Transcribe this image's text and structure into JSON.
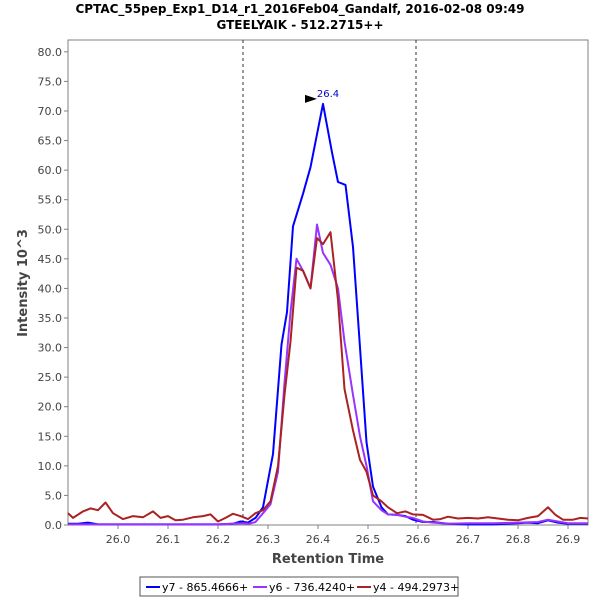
{
  "chart_data": {
    "type": "line",
    "title": "CPTAC_55pep_Exp1_D14_r1_2016Feb04_Gandalf, 2016-02-08 09:49",
    "subtitle": "GTEELYAIK - 512.2715++",
    "xlabel": "Retention Time",
    "ylabel": "Intensity 10^3",
    "xlim": [
      25.9,
      26.94
    ],
    "ylim": [
      0,
      82
    ],
    "x_ticks": [
      "26.0",
      "26.1",
      "26.2",
      "26.3",
      "26.4",
      "26.5",
      "26.6",
      "26.7",
      "26.8",
      "26.9"
    ],
    "y_ticks": [
      "0.0",
      "5.0",
      "10.0",
      "15.0",
      "20.0",
      "25.0",
      "30.0",
      "35.0",
      "40.0",
      "45.0",
      "50.0",
      "55.0",
      "60.0",
      "65.0",
      "70.0",
      "75.0",
      "80.0"
    ],
    "vlines": [
      26.25,
      26.596
    ],
    "peak_annotation": {
      "label": "26.4",
      "x": 26.41,
      "y": 71.2
    },
    "series": [
      {
        "name": "y7 - 865.4666+",
        "color": "#0000ff",
        "points": [
          [
            25.9,
            0.2
          ],
          [
            25.92,
            0.2
          ],
          [
            25.94,
            0.4
          ],
          [
            25.96,
            0.1
          ],
          [
            26.0,
            0.1
          ],
          [
            26.1,
            0.1
          ],
          [
            26.2,
            0.1
          ],
          [
            26.23,
            0.2
          ],
          [
            26.245,
            0.6
          ],
          [
            26.26,
            0.4
          ],
          [
            26.275,
            1.2
          ],
          [
            26.29,
            3.0
          ],
          [
            26.31,
            12.0
          ],
          [
            26.327,
            30.5
          ],
          [
            26.338,
            36.0
          ],
          [
            26.35,
            50.5
          ],
          [
            26.37,
            56.0
          ],
          [
            26.385,
            60.5
          ],
          [
            26.41,
            71.2
          ],
          [
            26.428,
            63.0
          ],
          [
            26.44,
            58.0
          ],
          [
            26.455,
            57.5
          ],
          [
            26.47,
            47.0
          ],
          [
            26.484,
            30.0
          ],
          [
            26.497,
            14.0
          ],
          [
            26.51,
            6.5
          ],
          [
            26.527,
            3.0
          ],
          [
            26.54,
            1.8
          ],
          [
            26.558,
            1.7
          ],
          [
            26.575,
            1.5
          ],
          [
            26.59,
            0.9
          ],
          [
            26.61,
            0.5
          ],
          [
            26.63,
            0.5
          ],
          [
            26.66,
            0.2
          ],
          [
            26.7,
            0.1
          ],
          [
            26.75,
            0.1
          ],
          [
            26.8,
            0.3
          ],
          [
            26.82,
            0.4
          ],
          [
            26.84,
            0.3
          ],
          [
            26.86,
            0.8
          ],
          [
            26.88,
            0.4
          ],
          [
            26.9,
            0.2
          ],
          [
            26.94,
            0.2
          ]
        ]
      },
      {
        "name": "y6 - 736.4240+",
        "color": "#9933ff",
        "points": [
          [
            25.9,
            0.1
          ],
          [
            26.0,
            0.1
          ],
          [
            26.1,
            0.1
          ],
          [
            26.2,
            0.1
          ],
          [
            26.25,
            0.3
          ],
          [
            26.262,
            0.2
          ],
          [
            26.275,
            0.5
          ],
          [
            26.29,
            2.0
          ],
          [
            26.305,
            3.5
          ],
          [
            26.32,
            9.0
          ],
          [
            26.333,
            24.0
          ],
          [
            26.345,
            36.0
          ],
          [
            26.357,
            45.0
          ],
          [
            26.37,
            43.0
          ],
          [
            26.385,
            40.0
          ],
          [
            26.398,
            50.8
          ],
          [
            26.41,
            46.0
          ],
          [
            26.425,
            44.0
          ],
          [
            26.44,
            40.0
          ],
          [
            26.453,
            31.0
          ],
          [
            26.47,
            22.0
          ],
          [
            26.484,
            15.0
          ],
          [
            26.497,
            10.0
          ],
          [
            26.51,
            4.0
          ],
          [
            26.527,
            2.5
          ],
          [
            26.54,
            1.8
          ],
          [
            26.558,
            1.7
          ],
          [
            26.575,
            1.4
          ],
          [
            26.59,
            1.2
          ],
          [
            26.61,
            0.6
          ],
          [
            26.63,
            0.4
          ],
          [
            26.66,
            0.2
          ],
          [
            26.7,
            0.3
          ],
          [
            26.75,
            0.3
          ],
          [
            26.8,
            0.4
          ],
          [
            26.84,
            0.5
          ],
          [
            26.86,
            0.9
          ],
          [
            26.88,
            0.6
          ],
          [
            26.9,
            0.3
          ],
          [
            26.94,
            0.3
          ]
        ]
      },
      {
        "name": "y4 - 494.2973+",
        "color": "#aa2222",
        "points": [
          [
            25.9,
            2.0
          ],
          [
            25.91,
            1.2
          ],
          [
            25.93,
            2.3
          ],
          [
            25.945,
            2.8
          ],
          [
            25.96,
            2.5
          ],
          [
            25.975,
            3.8
          ],
          [
            25.99,
            2.0
          ],
          [
            26.01,
            1.0
          ],
          [
            26.03,
            1.5
          ],
          [
            26.05,
            1.3
          ],
          [
            26.07,
            2.3
          ],
          [
            26.085,
            1.2
          ],
          [
            26.1,
            1.5
          ],
          [
            26.115,
            0.8
          ],
          [
            26.13,
            0.9
          ],
          [
            26.15,
            1.3
          ],
          [
            26.17,
            1.5
          ],
          [
            26.185,
            1.8
          ],
          [
            26.2,
            0.6
          ],
          [
            26.215,
            1.2
          ],
          [
            26.23,
            1.9
          ],
          [
            26.245,
            1.5
          ],
          [
            26.26,
            1.0
          ],
          [
            26.275,
            2.0
          ],
          [
            26.29,
            2.5
          ],
          [
            26.305,
            4.0
          ],
          [
            26.32,
            10.0
          ],
          [
            26.333,
            22.0
          ],
          [
            26.345,
            31.0
          ],
          [
            26.357,
            43.5
          ],
          [
            26.37,
            43.0
          ],
          [
            26.385,
            40.0
          ],
          [
            26.398,
            48.5
          ],
          [
            26.41,
            47.5
          ],
          [
            26.425,
            49.5
          ],
          [
            26.44,
            38.0
          ],
          [
            26.453,
            23.0
          ],
          [
            26.47,
            16.0
          ],
          [
            26.484,
            11.0
          ],
          [
            26.497,
            9.0
          ],
          [
            26.51,
            5.0
          ],
          [
            26.527,
            4.0
          ],
          [
            26.54,
            3.0
          ],
          [
            26.558,
            2.0
          ],
          [
            26.575,
            2.3
          ],
          [
            26.59,
            1.8
          ],
          [
            26.61,
            1.7
          ],
          [
            26.63,
            0.9
          ],
          [
            26.645,
            1.0
          ],
          [
            26.66,
            1.4
          ],
          [
            26.68,
            1.1
          ],
          [
            26.7,
            1.2
          ],
          [
            26.72,
            1.1
          ],
          [
            26.74,
            1.3
          ],
          [
            26.76,
            1.1
          ],
          [
            26.78,
            0.9
          ],
          [
            26.8,
            0.8
          ],
          [
            26.82,
            1.2
          ],
          [
            26.84,
            1.5
          ],
          [
            26.86,
            3.0
          ],
          [
            26.875,
            1.7
          ],
          [
            26.89,
            0.9
          ],
          [
            26.91,
            0.9
          ],
          [
            26.925,
            1.2
          ],
          [
            26.94,
            1.1
          ]
        ]
      }
    ]
  }
}
